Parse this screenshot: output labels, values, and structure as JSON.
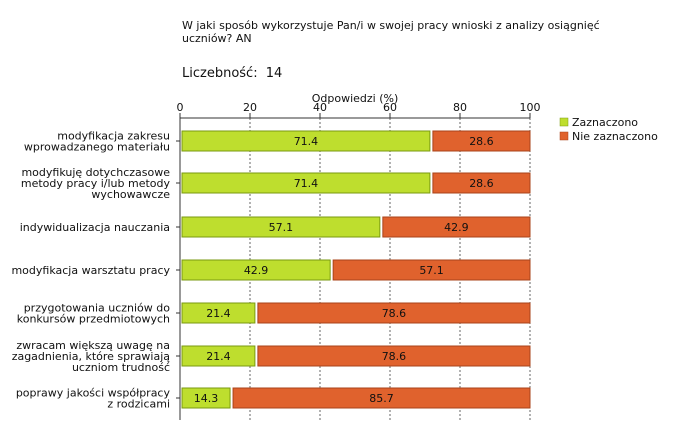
{
  "title": "W jaki sposób wykorzystuje Pan/i w swojej pracy wnioski z analizy osiągnięć uczniów? AN",
  "sample": {
    "label": "Liczebność:",
    "value": "14"
  },
  "colors": {
    "selected": "#bede2e",
    "not_selected": "#e0622d",
    "axis": "#333333"
  },
  "chart_data": {
    "type": "bar",
    "orientation": "horizontal",
    "stacked": true,
    "title": "W jaki sposób wykorzystuje Pan/i w swojej pracy wnioski z analizy osiągnięć uczniów? AN",
    "xlabel": "Odpowiedzi (%)",
    "ylabel": "",
    "xlim": [
      0,
      100
    ],
    "ticks": [
      0,
      20,
      40,
      60,
      80,
      100
    ],
    "legend_position": "right",
    "categories": [
      "modyfikacja zakresu\nwprowadzanego materiału",
      "modyfikuję dotychczasowe\nmetody pracy i/lub metody\nwychowawcze",
      "indywidualizacja nauczania",
      "modyfikacja warsztatu pracy",
      "przygotowania uczniów do\nkonkursów przedmiotowych",
      "zwracam większą uwagę na\nzagadnienia, które sprawiają\nuczniom trudność",
      "poprawy jakości współpracy\nz rodzicami"
    ],
    "series": [
      {
        "name": "Zaznaczono",
        "values": [
          71.4,
          71.4,
          57.1,
          42.9,
          21.4,
          21.4,
          14.3
        ]
      },
      {
        "name": "Nie zaznaczono",
        "values": [
          28.6,
          28.6,
          42.9,
          57.1,
          78.6,
          78.6,
          85.7
        ]
      }
    ]
  }
}
